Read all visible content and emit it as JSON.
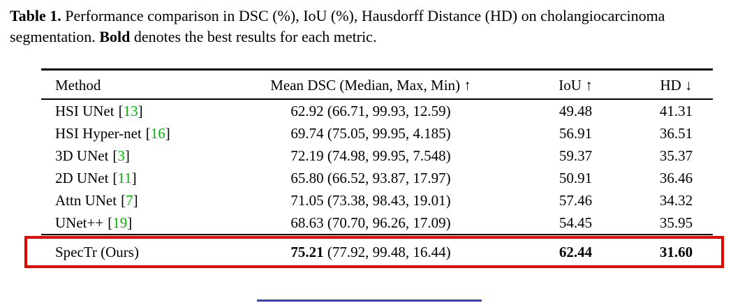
{
  "caption": {
    "label": "Table 1.",
    "text1": " Performance comparison in DSC (%), IoU (%), Hausdorff Distance (HD) on cholangiocarcinoma segmentation. ",
    "bold_word": "Bold",
    "text2": " denotes the best results for each metric."
  },
  "colors": {
    "citation_green": "#00b400",
    "highlight_red": "#e10600",
    "bottom_line_blue": "#3a3ad0",
    "rule_black": "#000000"
  },
  "table": {
    "headers": {
      "method": "Method",
      "dsc": "Mean DSC (Median, Max, Min) ↑",
      "iou": "IoU ↑",
      "hd": "HD ↓"
    },
    "punct": {
      "open": "[",
      "close": "]"
    },
    "rows": [
      {
        "method": "HSI UNet",
        "cite": "13",
        "dsc_mean": "62.92",
        "dsc_detail": "(66.71, 99.93, 12.59)",
        "iou": "49.48",
        "hd": "41.31"
      },
      {
        "method": "HSI Hyper-net",
        "cite": "16",
        "dsc_mean": "69.74",
        "dsc_detail": "(75.05, 99.95, 4.185)",
        "iou": "56.91",
        "hd": "36.51"
      },
      {
        "method": "3D UNet",
        "cite": "3",
        "dsc_mean": "72.19",
        "dsc_detail": "(74.98, 99.95, 7.548)",
        "iou": "59.37",
        "hd": "35.37"
      },
      {
        "method": "2D UNet",
        "cite": "11",
        "dsc_mean": "65.80",
        "dsc_detail": "(66.52, 93.87, 17.97)",
        "iou": "50.91",
        "hd": "36.46"
      },
      {
        "method": "Attn UNet",
        "cite": "7",
        "dsc_mean": "71.05",
        "dsc_detail": "(73.38, 98.43, 19.01)",
        "iou": "57.46",
        "hd": "34.32"
      },
      {
        "method": "UNet++",
        "cite": "19",
        "dsc_mean": "68.63",
        "dsc_detail": "(70.70, 96.26, 17.09)",
        "iou": "54.45",
        "hd": "35.95"
      }
    ],
    "highlight_row": {
      "method": "SpecTr (Ours)",
      "dsc_mean": "75.21",
      "dsc_detail": "(77.92, 99.48, 16.44)",
      "iou": "62.44",
      "hd": "31.60"
    }
  }
}
